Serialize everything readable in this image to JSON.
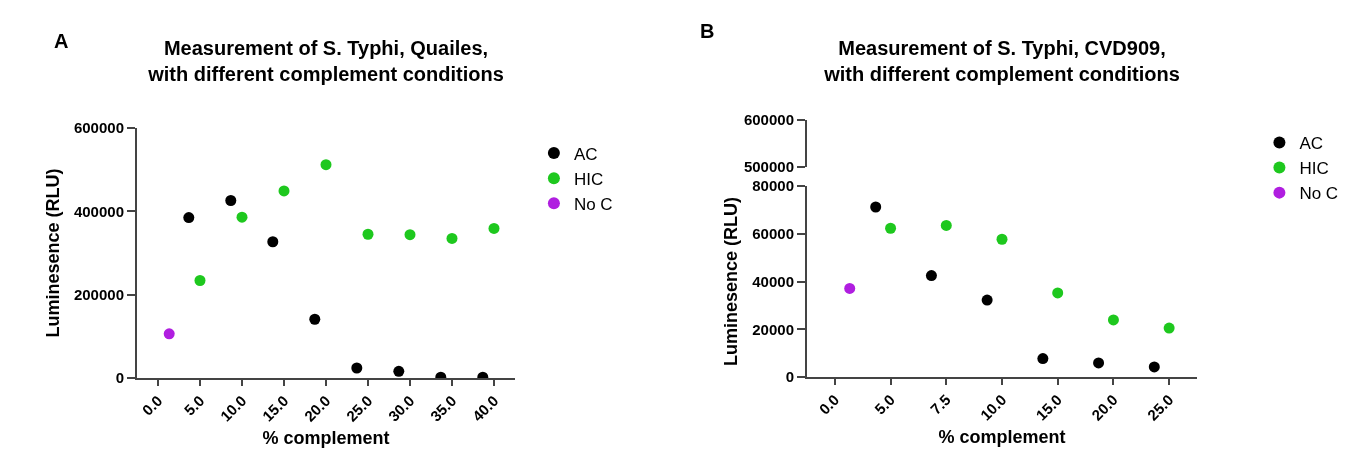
{
  "chart_data": [
    {
      "type": "scatter",
      "title": "Measurement of S. Typhi, Quailes,\nwith different complement conditions",
      "xlabel": "% complement",
      "ylabel": "Luminesence (RLU)",
      "annotations": [
        "A"
      ],
      "categories": [
        "0.0",
        "5.0",
        "10.0",
        "15.0",
        "20.0",
        "25.0",
        "30.0",
        "35.0",
        "40.0"
      ],
      "ylim": [
        0,
        600000
      ],
      "yticks": [
        0,
        200000,
        400000,
        600000
      ],
      "legend": "top right",
      "marker": "circle",
      "series": [
        {
          "name": "AC",
          "color": "#000000",
          "x": [
            "5.0",
            "10.0",
            "15.0",
            "20.0",
            "25.0",
            "30.0",
            "35.0",
            "40.0"
          ],
          "values": [
            385000,
            426000,
            327000,
            141000,
            24000,
            16000,
            2000,
            2000
          ]
        },
        {
          "name": "HIC",
          "color": "#1ec81e",
          "x": [
            "5.0",
            "10.0",
            "15.0",
            "20.0",
            "25.0",
            "30.0",
            "35.0",
            "40.0"
          ],
          "values": [
            234000,
            386000,
            449000,
            512000,
            345000,
            344000,
            335000,
            359000
          ]
        },
        {
          "name": "No C",
          "color": "#b01ee0",
          "x": [
            "0.0"
          ],
          "values": [
            106000
          ]
        }
      ]
    },
    {
      "type": "scatter",
      "title": "Measurement of S. Typhi, CVD909,\nwith different complement conditions",
      "annotations": [
        "B"
      ],
      "categories": [
        "0.0",
        "5.0",
        "7.5",
        "10.0",
        "15.0",
        "20.0",
        "25.0"
      ],
      "ylim": [
        500000,
        600000
      ],
      "yticks": [
        500000,
        600000
      ],
      "tick_labels": "y"
    },
    {
      "type": "scatter",
      "xlabel": "% complement",
      "ylabel": "Luminesence (RLU)",
      "categories": [
        "0.0",
        "5.0",
        "7.5",
        "10.0",
        "15.0",
        "20.0",
        "25.0"
      ],
      "ylim": [
        0,
        80000
      ],
      "yticks": [
        0,
        20000,
        40000,
        60000,
        80000
      ],
      "legend": "top right",
      "marker": "circle",
      "series": [
        {
          "name": "AC",
          "color": "#000000",
          "x": [
            "5.0",
            "7.5",
            "10.0",
            "15.0",
            "20.0",
            "25.0"
          ],
          "values": [
            71200,
            42500,
            32200,
            7700,
            5900,
            4200
          ]
        },
        {
          "name": "HIC",
          "color": "#1ec81e",
          "x": [
            "5.0",
            "7.5",
            "10.0",
            "15.0",
            "20.0",
            "25.0"
          ],
          "values": [
            62300,
            63500,
            57700,
            35200,
            23900,
            20500
          ]
        },
        {
          "name": "No C",
          "color": "#b01ee0",
          "x": [
            "0.0"
          ],
          "values": [
            37100
          ]
        }
      ]
    }
  ]
}
